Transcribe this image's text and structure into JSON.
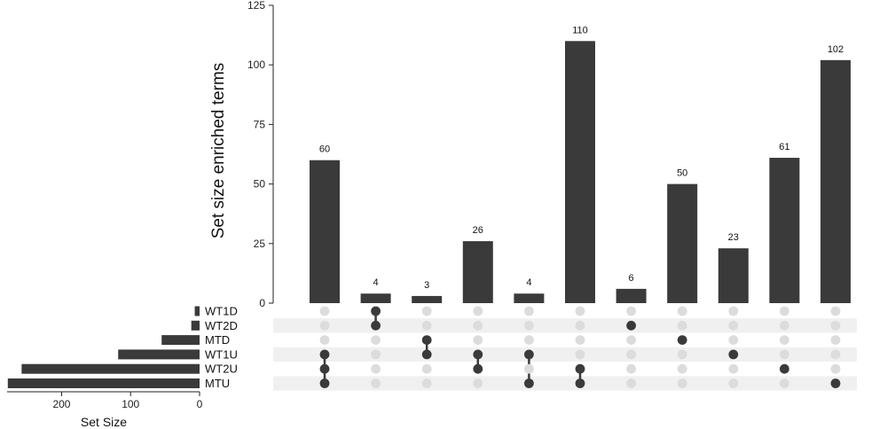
{
  "chart_data": {
    "type": "upset",
    "ylabel": "Set size enriched terms",
    "yticks": [
      0,
      25,
      50,
      75,
      100,
      125
    ],
    "ylim": [
      0,
      125
    ],
    "set_size_label": "Set Size",
    "set_size_ticks": [
      200,
      100,
      0
    ],
    "sets": [
      {
        "name": "WT1D",
        "size": 7
      },
      {
        "name": "WT2D",
        "size": 12
      },
      {
        "name": "MTD",
        "size": 55
      },
      {
        "name": "WT1U",
        "size": 118
      },
      {
        "name": "WT2U",
        "size": 258
      },
      {
        "name": "MTU",
        "size": 278
      }
    ],
    "intersections": [
      {
        "value": 60,
        "label": "60",
        "members": [
          "WT1U",
          "WT2U",
          "MTU"
        ]
      },
      {
        "value": 4,
        "label": "4",
        "members": [
          "WT1D",
          "WT2D"
        ]
      },
      {
        "value": 3,
        "label": "3",
        "members": [
          "MTD",
          "WT1U"
        ]
      },
      {
        "value": 26,
        "label": "26",
        "members": [
          "WT1U",
          "WT2U"
        ]
      },
      {
        "value": 4,
        "label": "4",
        "members": [
          "WT1U",
          "MTU"
        ]
      },
      {
        "value": 110,
        "label": "110",
        "members": [
          "WT2U",
          "MTU"
        ]
      },
      {
        "value": 6,
        "label": "6",
        "members": [
          "WT2D"
        ]
      },
      {
        "value": 50,
        "label": "50",
        "members": [
          "MTD"
        ]
      },
      {
        "value": 23,
        "label": "23",
        "members": [
          "WT1U"
        ]
      },
      {
        "value": 61,
        "label": "61",
        "members": [
          "WT2U"
        ]
      },
      {
        "value": 102,
        "label": "102",
        "members": [
          "MTU"
        ]
      }
    ],
    "colors": {
      "bar": "#3a3a3a",
      "dot_on": "#3a3a3a",
      "dot_off": "#dcdcdc",
      "stripe": "#f0f0f0"
    }
  }
}
